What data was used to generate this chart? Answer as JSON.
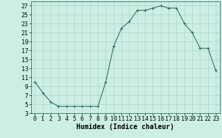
{
  "x": [
    0,
    1,
    2,
    3,
    4,
    5,
    6,
    7,
    8,
    9,
    10,
    11,
    12,
    13,
    14,
    15,
    16,
    17,
    18,
    19,
    20,
    21,
    22,
    23
  ],
  "y": [
    10,
    7.5,
    5.5,
    4.5,
    4.5,
    4.5,
    4.5,
    4.5,
    4.5,
    10,
    18,
    22,
    23.5,
    26,
    26,
    26.5,
    27,
    26.5,
    26.5,
    23,
    21,
    17.5,
    17.5,
    12.5
  ],
  "xlabel": "Humidex (Indice chaleur)",
  "xlim": [
    -0.5,
    23.5
  ],
  "ylim": [
    3,
    28
  ],
  "yticks": [
    3,
    5,
    7,
    9,
    11,
    13,
    15,
    17,
    19,
    21,
    23,
    25,
    27
  ],
  "xticks": [
    0,
    1,
    2,
    3,
    4,
    5,
    6,
    7,
    8,
    9,
    10,
    11,
    12,
    13,
    14,
    15,
    16,
    17,
    18,
    19,
    20,
    21,
    22,
    23
  ],
  "xtick_labels": [
    "0",
    "1",
    "2",
    "3",
    "4",
    "5",
    "6",
    "7",
    "8",
    "9",
    "10",
    "11",
    "12",
    "13",
    "14",
    "15",
    "16",
    "17",
    "18",
    "19",
    "20",
    "21",
    "22",
    "23"
  ],
  "line_color": "#2d6e5e",
  "marker": "+",
  "bg_color": "#cceee4",
  "grid_color": "#aad4c8",
  "axis_fontsize": 7,
  "tick_fontsize": 6,
  "xlabel_fontsize": 7
}
